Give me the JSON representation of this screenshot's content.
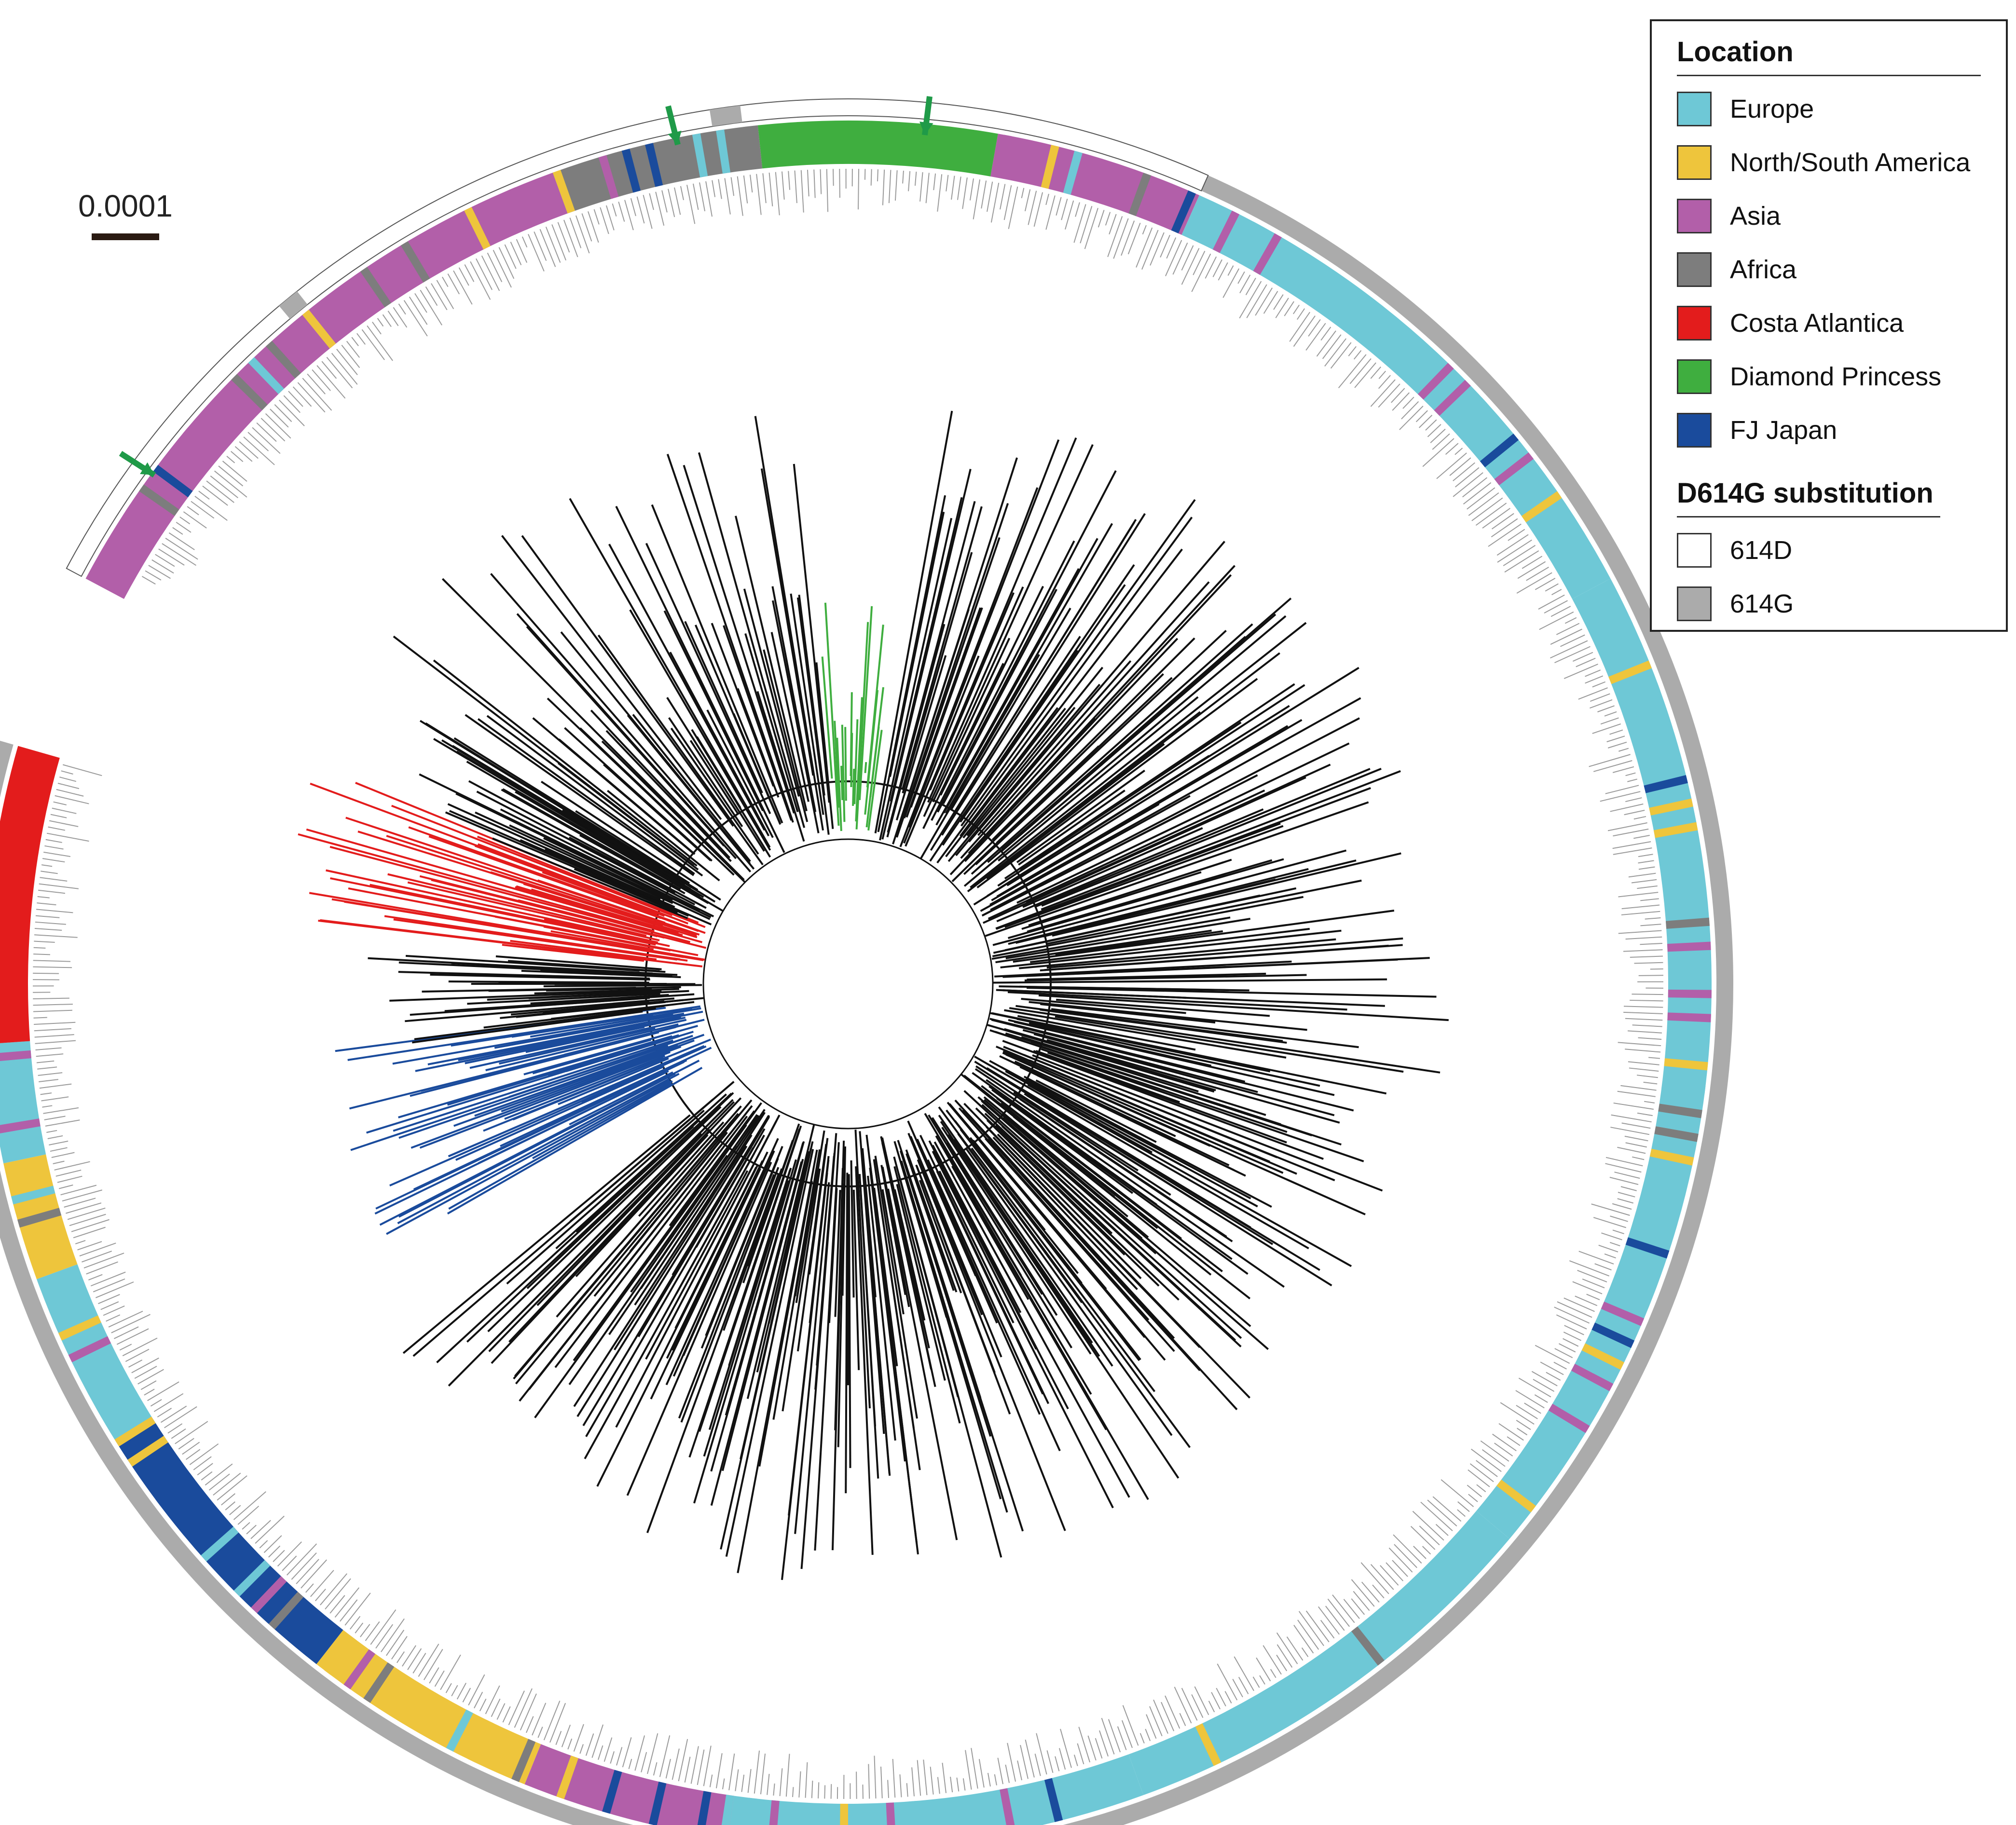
{
  "scale_bar": {
    "label": "0.0001"
  },
  "legend": {
    "location_title": "Location",
    "locations": [
      {
        "key": "europe",
        "label": "Europe",
        "color": "#6ec8d6"
      },
      {
        "key": "america",
        "label": "North/South America",
        "color": "#eec53c"
      },
      {
        "key": "asia",
        "label": "Asia",
        "color": "#b25fa9"
      },
      {
        "key": "africa",
        "label": "Africa",
        "color": "#7d7d7d"
      },
      {
        "key": "costa",
        "label": "Costa Atlantica",
        "color": "#e31c1c"
      },
      {
        "key": "diamond",
        "label": "Diamond Princess",
        "color": "#3fae3f"
      },
      {
        "key": "fj",
        "label": "FJ Japan",
        "color": "#1a4b9c"
      }
    ],
    "substitution_title": "D614G substitution",
    "substitutions": [
      {
        "key": "614D",
        "label": "614D",
        "color": "#ffffff"
      },
      {
        "key": "614G",
        "label": "614G",
        "color": "#ababab"
      }
    ]
  },
  "tree": {
    "highlighted_clades": [
      {
        "name": "costa-atlantica-clade",
        "color": "#e31c1c"
      },
      {
        "name": "diamond-princess-clade",
        "color": "#3fae3f"
      },
      {
        "name": "fj-japan-clade",
        "color": "#1a4b9c"
      }
    ],
    "arrow_color": "#1f9a48"
  }
}
